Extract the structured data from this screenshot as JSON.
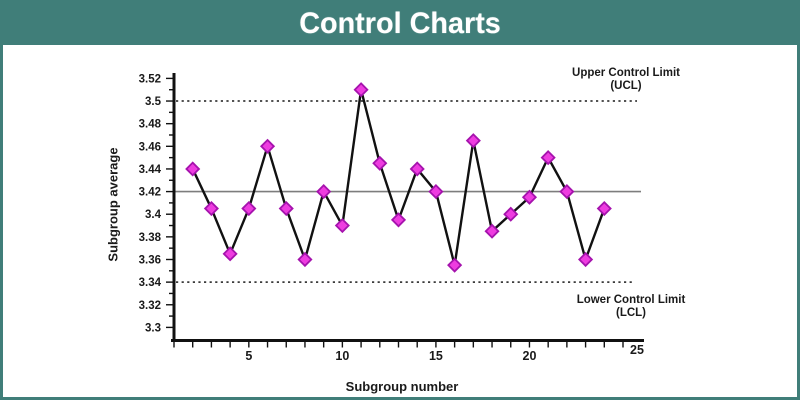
{
  "page": {
    "banner_title": "Control Charts"
  },
  "chart_data": {
    "type": "line",
    "title": "Control Charts",
    "xlabel": "Subgroup number",
    "ylabel": "Subgroup average",
    "x": [
      2,
      3,
      4,
      5,
      6,
      7,
      8,
      9,
      10,
      11,
      12,
      13,
      14,
      15,
      16,
      17,
      18,
      19,
      20,
      21,
      22,
      23,
      24
    ],
    "series": [
      {
        "name": "Subgroup average",
        "values": [
          3.44,
          3.405,
          3.365,
          3.405,
          3.46,
          3.405,
          3.36,
          3.42,
          3.39,
          3.51,
          3.445,
          3.395,
          3.44,
          3.42,
          3.355,
          3.465,
          3.385,
          3.4,
          3.415,
          3.45,
          3.42,
          3.36,
          3.405
        ]
      }
    ],
    "xlim": [
      1,
      25
    ],
    "ylim": [
      3.3,
      3.52
    ],
    "x_major_ticks": [
      5,
      10,
      15,
      20,
      25
    ],
    "x_minor_tick_step": 1,
    "y_tick_values": [
      3.3,
      3.32,
      3.34,
      3.36,
      3.38,
      3.4,
      3.42,
      3.44,
      3.46,
      3.48,
      3.5,
      3.52
    ],
    "y_tick_labels": [
      "3.3",
      "3.32",
      "3.34",
      "3.36",
      "3.38",
      "3.4",
      "3.42",
      "3.44",
      "3.46",
      "3.48",
      "3.5",
      "3.52"
    ],
    "y_minor_tick_step": 0.01,
    "center_line": 3.42,
    "ucl": 3.5,
    "lcl": 3.34,
    "grid": "off",
    "legend": "none",
    "marker": "diamond",
    "annotations": {
      "ucl": {
        "line1": "Upper Control Limit",
        "line2": "(UCL)"
      },
      "lcl": {
        "line1": "Lower Control Limit",
        "line2": "(LCL)"
      }
    },
    "colors": {
      "banner": "#407e79",
      "marker_fill": "#ee3ce0",
      "marker_stroke": "#a513ad",
      "series_line": "#111111",
      "center_line": "#7d7d7d",
      "limit_line": "#3a3a3a",
      "axis": "#111111",
      "text": "#1a1a1a"
    }
  }
}
